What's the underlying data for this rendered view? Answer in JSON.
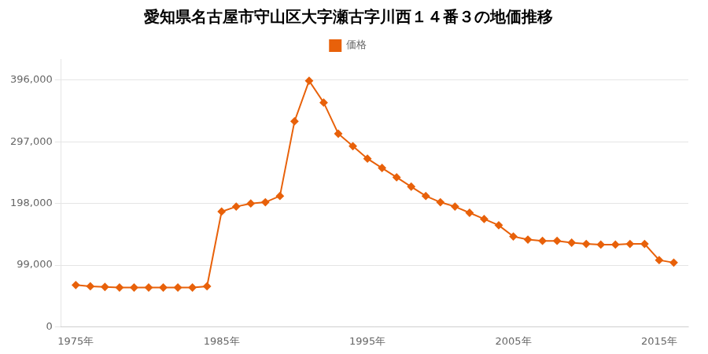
{
  "chart_data": {
    "type": "line",
    "title": "愛知県名古屋市守山区大字瀬古字川西１４番３の地価推移",
    "x": [
      1975,
      1976,
      1977,
      1978,
      1979,
      1980,
      1981,
      1982,
      1983,
      1984,
      1985,
      1986,
      1987,
      1988,
      1989,
      1990,
      1991,
      1992,
      1993,
      1994,
      1995,
      1996,
      1997,
      1998,
      1999,
      2000,
      2001,
      2002,
      2003,
      2004,
      2005,
      2006,
      2007,
      2008,
      2009,
      2010,
      2011,
      2012,
      2013,
      2014,
      2015,
      2016
    ],
    "series": [
      {
        "name": "価格",
        "color": "#E8610A",
        "marker": "diamond",
        "values": [
          67000,
          65000,
          64000,
          63000,
          63000,
          63000,
          63000,
          63000,
          63000,
          65000,
          185000,
          193000,
          198000,
          200000,
          210000,
          330000,
          395000,
          360000,
          310000,
          290000,
          270000,
          255000,
          240000,
          225000,
          210000,
          200000,
          193000,
          183000,
          173000,
          163000,
          145000,
          140000,
          138000,
          138000,
          135000,
          133000,
          132000,
          132000,
          133000,
          133000,
          107000,
          103000
        ]
      }
    ],
    "xlim": [
      1974,
      2017
    ],
    "xticks": [
      {
        "value": 1975,
        "label": "1975年"
      },
      {
        "value": 1985,
        "label": "1985年"
      },
      {
        "value": 1995,
        "label": "1995年"
      },
      {
        "value": 2005,
        "label": "2005年"
      },
      {
        "value": 2015,
        "label": "2015年"
      }
    ],
    "ylim": [
      0,
      430000
    ],
    "yticks": [
      0,
      {
        "value": 99000,
        "label": "99,000"
      },
      {
        "value": 198000,
        "label": "198,000"
      },
      {
        "value": 297000,
        "label": "297,000"
      },
      {
        "value": 396000,
        "label": "396,000"
      }
    ],
    "grid": "y",
    "legend": "top"
  }
}
